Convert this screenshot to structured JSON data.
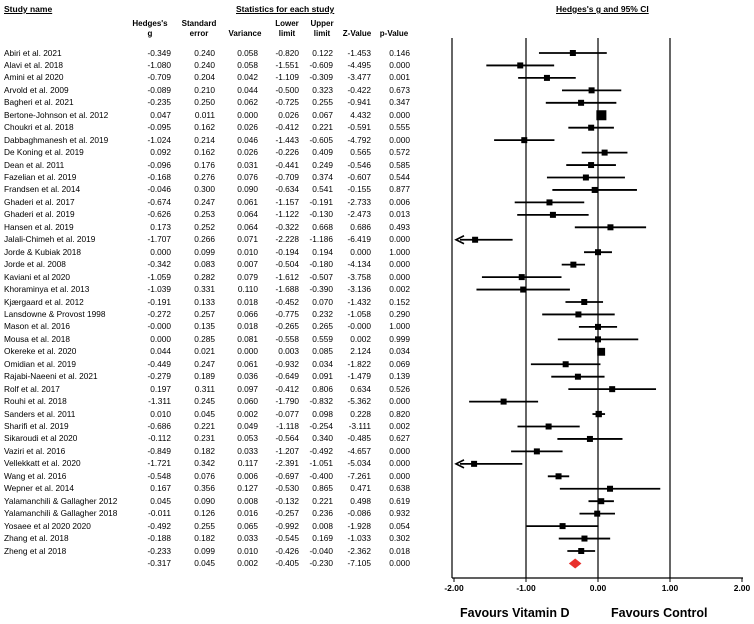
{
  "header": {
    "study_col": "Study name",
    "stats_col": "Statistics for each study",
    "plot_col": "Hedges's g and 95% CI"
  },
  "columns": {
    "g": [
      "Hedges's",
      "g"
    ],
    "se": [
      "Standard",
      "error"
    ],
    "var": [
      "Variance"
    ],
    "lower": [
      "Lower",
      "limit"
    ],
    "upper": [
      "Upper",
      "limit"
    ],
    "z": [
      "Z-Value"
    ],
    "p": [
      "p-Value"
    ]
  },
  "favours": {
    "left": "Favours Vitamin D",
    "right": "Favours Control"
  },
  "colors": {
    "marker": "#000000",
    "summary": "#e8302c"
  },
  "chart_data": {
    "type": "forest",
    "x_ticks": [
      "-2.00",
      "-1.00",
      "0.00",
      "1.00",
      "2.00"
    ],
    "xlim": [
      -2,
      2
    ],
    "studies": [
      {
        "name": "Abiri et al. 2021",
        "g": "-0.349",
        "se": "0.240",
        "var": "0.058",
        "lower": "-0.820",
        "upper": "0.122",
        "z": "-1.453",
        "p": "0.146"
      },
      {
        "name": "Alavi et al. 2018",
        "g": "-1.080",
        "se": "0.240",
        "var": "0.058",
        "lower": "-1.551",
        "upper": "-0.609",
        "z": "-4.495",
        "p": "0.000"
      },
      {
        "name": "Amini et al 2020",
        "g": "-0.709",
        "se": "0.204",
        "var": "0.042",
        "lower": "-1.109",
        "upper": "-0.309",
        "z": "-3.477",
        "p": "0.001"
      },
      {
        "name": "Arvold et al. 2009",
        "g": "-0.089",
        "se": "0.210",
        "var": "0.044",
        "lower": "-0.500",
        "upper": "0.323",
        "z": "-0.422",
        "p": "0.673"
      },
      {
        "name": "Bagheri et al. 2021",
        "g": "-0.235",
        "se": "0.250",
        "var": "0.062",
        "lower": "-0.725",
        "upper": "0.255",
        "z": "-0.941",
        "p": "0.347"
      },
      {
        "name": "Bertone-Johnson et al. 2012",
        "g": "0.047",
        "se": "0.011",
        "var": "0.000",
        "lower": "0.026",
        "upper": "0.067",
        "z": "4.432",
        "p": "0.000"
      },
      {
        "name": "Choukri et al. 2018",
        "g": "-0.095",
        "se": "0.162",
        "var": "0.026",
        "lower": "-0.412",
        "upper": "0.221",
        "z": "-0.591",
        "p": "0.555"
      },
      {
        "name": "Dabbaghmanesh et al. 2019",
        "g": "-1.024",
        "se": "0.214",
        "var": "0.046",
        "lower": "-1.443",
        "upper": "-0.605",
        "z": "-4.792",
        "p": "0.000"
      },
      {
        "name": "De Koning et al. 2019",
        "g": "0.092",
        "se": "0.162",
        "var": "0.026",
        "lower": "-0.226",
        "upper": "0.409",
        "z": "0.565",
        "p": "0.572"
      },
      {
        "name": "Dean et al. 2011",
        "g": "-0.096",
        "se": "0.176",
        "var": "0.031",
        "lower": "-0.441",
        "upper": "0.249",
        "z": "-0.546",
        "p": "0.585"
      },
      {
        "name": "Fazelian et al. 2019",
        "g": "-0.168",
        "se": "0.276",
        "var": "0.076",
        "lower": "-0.709",
        "upper": "0.374",
        "z": "-0.607",
        "p": "0.544"
      },
      {
        "name": "Frandsen et al. 2014",
        "g": "-0.046",
        "se": "0.300",
        "var": "0.090",
        "lower": "-0.634",
        "upper": "0.541",
        "z": "-0.155",
        "p": "0.877"
      },
      {
        "name": "Ghaderi et al. 2017",
        "g": "-0.674",
        "se": "0.247",
        "var": "0.061",
        "lower": "-1.157",
        "upper": "-0.191",
        "z": "-2.733",
        "p": "0.006"
      },
      {
        "name": "Ghaderi et al. 2019",
        "g": "-0.626",
        "se": "0.253",
        "var": "0.064",
        "lower": "-1.122",
        "upper": "-0.130",
        "z": "-2.473",
        "p": "0.013"
      },
      {
        "name": "Hansen et al. 2019",
        "g": "0.173",
        "se": "0.252",
        "var": "0.064",
        "lower": "-0.322",
        "upper": "0.668",
        "z": "0.686",
        "p": "0.493"
      },
      {
        "name": "Jalali-Chimeh et al. 2019",
        "g": "-1.707",
        "se": "0.266",
        "var": "0.071",
        "lower": "-2.228",
        "upper": "-1.186",
        "z": "-6.419",
        "p": "0.000"
      },
      {
        "name": "Jorde & Kubiak 2018",
        "g": "0.000",
        "se": "0.099",
        "var": "0.010",
        "lower": "-0.194",
        "upper": "0.194",
        "z": "0.000",
        "p": "1.000"
      },
      {
        "name": "Jorde et al. 2008",
        "g": "-0.342",
        "se": "0.083",
        "var": "0.007",
        "lower": "-0.504",
        "upper": "-0.180",
        "z": "-4.134",
        "p": "0.000"
      },
      {
        "name": "Kaviani et al 2020",
        "g": "-1.059",
        "se": "0.282",
        "var": "0.079",
        "lower": "-1.612",
        "upper": "-0.507",
        "z": "-3.758",
        "p": "0.000"
      },
      {
        "name": "Khoraminya et al. 2013",
        "g": "-1.039",
        "se": "0.331",
        "var": "0.110",
        "lower": "-1.688",
        "upper": "-0.390",
        "z": "-3.136",
        "p": "0.002"
      },
      {
        "name": "Kjærgaard et al. 2012",
        "g": "-0.191",
        "se": "0.133",
        "var": "0.018",
        "lower": "-0.452",
        "upper": "0.070",
        "z": "-1.432",
        "p": "0.152"
      },
      {
        "name": "Lansdowne & Provost 1998",
        "g": "-0.272",
        "se": "0.257",
        "var": "0.066",
        "lower": "-0.775",
        "upper": "0.232",
        "z": "-1.058",
        "p": "0.290"
      },
      {
        "name": "Mason et al. 2016",
        "g": "-0.000",
        "se": "0.135",
        "var": "0.018",
        "lower": "-0.265",
        "upper": "0.265",
        "z": "-0.000",
        "p": "1.000"
      },
      {
        "name": "Mousa et al. 2018",
        "g": "0.000",
        "se": "0.285",
        "var": "0.081",
        "lower": "-0.558",
        "upper": "0.559",
        "z": "0.002",
        "p": "0.999"
      },
      {
        "name": "Okereke et al. 2020",
        "g": "0.044",
        "se": "0.021",
        "var": "0.000",
        "lower": "0.003",
        "upper": "0.085",
        "z": "2.124",
        "p": "0.034"
      },
      {
        "name": "Omidian et al. 2019",
        "g": "-0.449",
        "se": "0.247",
        "var": "0.061",
        "lower": "-0.932",
        "upper": "0.034",
        "z": "-1.822",
        "p": "0.069"
      },
      {
        "name": "Rajabi-Naeeni et al. 2021",
        "g": "-0.279",
        "se": "0.189",
        "var": "0.036",
        "lower": "-0.649",
        "upper": "0.091",
        "z": "-1.479",
        "p": "0.139"
      },
      {
        "name": "Rolf et al. 2017",
        "g": "0.197",
        "se": "0.311",
        "var": "0.097",
        "lower": "-0.412",
        "upper": "0.806",
        "z": "0.634",
        "p": "0.526"
      },
      {
        "name": "Rouhi et al. 2018",
        "g": "-1.311",
        "se": "0.245",
        "var": "0.060",
        "lower": "-1.790",
        "upper": "-0.832",
        "z": "-5.362",
        "p": "0.000"
      },
      {
        "name": "Sanders et al. 2011",
        "g": "0.010",
        "se": "0.045",
        "var": "0.002",
        "lower": "-0.077",
        "upper": "0.098",
        "z": "0.228",
        "p": "0.820"
      },
      {
        "name": "Sharifi et al. 2019",
        "g": "-0.686",
        "se": "0.221",
        "var": "0.049",
        "lower": "-1.118",
        "upper": "-0.254",
        "z": "-3.111",
        "p": "0.002"
      },
      {
        "name": "Sikaroudi et al 2020",
        "g": "-0.112",
        "se": "0.231",
        "var": "0.053",
        "lower": "-0.564",
        "upper": "0.340",
        "z": "-0.485",
        "p": "0.627"
      },
      {
        "name": "Vaziri et al. 2016",
        "g": "-0.849",
        "se": "0.182",
        "var": "0.033",
        "lower": "-1.207",
        "upper": "-0.492",
        "z": "-4.657",
        "p": "0.000"
      },
      {
        "name": "Vellekkatt et al. 2020",
        "g": "-1.721",
        "se": "0.342",
        "var": "0.117",
        "lower": "-2.391",
        "upper": "-1.051",
        "z": "-5.034",
        "p": "0.000"
      },
      {
        "name": "Wang et al. 2016",
        "g": "-0.548",
        "se": "0.076",
        "var": "0.006",
        "lower": "-0.697",
        "upper": "-0.400",
        "z": "-7.261",
        "p": "0.000"
      },
      {
        "name": "Wepner et al. 2014",
        "g": "0.167",
        "se": "0.356",
        "var": "0.127",
        "lower": "-0.530",
        "upper": "0.865",
        "z": "0.471",
        "p": "0.638"
      },
      {
        "name": "Yalamanchili & Gallagher 2012",
        "g": "0.045",
        "se": "0.090",
        "var": "0.008",
        "lower": "-0.132",
        "upper": "0.221",
        "z": "0.498",
        "p": "0.619"
      },
      {
        "name": "Yalamanchili & Gallagher 2018",
        "g": "-0.011",
        "se": "0.126",
        "var": "0.016",
        "lower": "-0.257",
        "upper": "0.236",
        "z": "-0.086",
        "p": "0.932"
      },
      {
        "name": "Yosaee et al 2020 2020",
        "g": "-0.492",
        "se": "0.255",
        "var": "0.065",
        "lower": "-0.992",
        "upper": "0.008",
        "z": "-1.928",
        "p": "0.054"
      },
      {
        "name": "Zhang et al. 2018",
        "g": "-0.188",
        "se": "0.182",
        "var": "0.033",
        "lower": "-0.545",
        "upper": "0.169",
        "z": "-1.033",
        "p": "0.302"
      },
      {
        "name": "Zheng et al 2018",
        "g": "-0.233",
        "se": "0.099",
        "var": "0.010",
        "lower": "-0.426",
        "upper": "-0.040",
        "z": "-2.362",
        "p": "0.018"
      }
    ],
    "summary": {
      "name": "",
      "g": "-0.317",
      "se": "0.045",
      "var": "0.002",
      "lower": "-0.405",
      "upper": "-0.230",
      "z": "-7.105",
      "p": "0.000"
    }
  }
}
